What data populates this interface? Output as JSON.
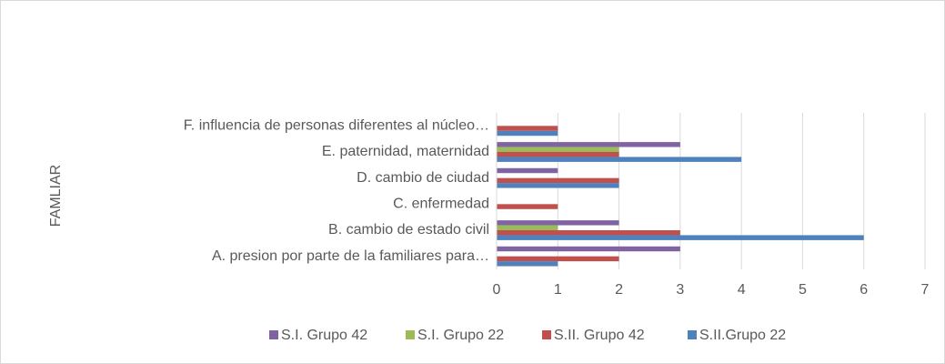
{
  "chart_data": {
    "type": "bar",
    "orientation": "horizontal",
    "y_axis_label": "FAMLIAR",
    "categories": [
      "A. presion por parte de la familiares para…",
      "B. cambio de estado civil",
      "C. enfermedad",
      "D. cambio de ciudad",
      "E. paternidad, maternidad",
      "F. influencia de personas diferentes al núcleo…"
    ],
    "series": [
      {
        "name": "S.I. Grupo 42",
        "color": "#8064a2",
        "values": [
          3,
          2,
          0,
          1,
          3,
          0
        ]
      },
      {
        "name": "S.I. Grupo 22",
        "color": "#9bbb59",
        "values": [
          0,
          1,
          0,
          0,
          2,
          0
        ]
      },
      {
        "name": "S.II. Grupo 42",
        "color": "#c0504d",
        "values": [
          2,
          3,
          1,
          2,
          2,
          1
        ]
      },
      {
        "name": "S.II.Grupo 22",
        "color": "#4f81bd",
        "values": [
          1,
          6,
          0,
          2,
          4,
          1
        ]
      }
    ],
    "xlim": [
      0,
      7
    ],
    "xticks": [
      0,
      1,
      2,
      3,
      4,
      5,
      6,
      7
    ],
    "grid": true,
    "legend": "bottom"
  }
}
